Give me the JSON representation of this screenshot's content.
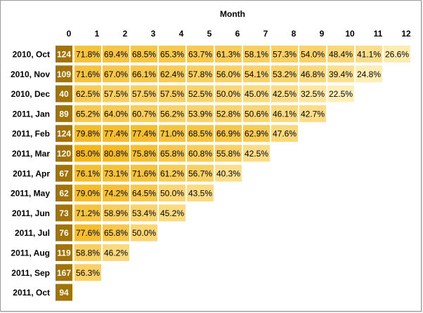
{
  "chart_data": {
    "type": "heatmap",
    "title": "Month",
    "columns": [
      "0",
      "1",
      "2",
      "3",
      "4",
      "5",
      "6",
      "7",
      "8",
      "9",
      "10",
      "11",
      "12"
    ],
    "rows": [
      {
        "label": "2010, Oct",
        "count": "124",
        "values": [
          "71.8%",
          "69.4%",
          "68.5%",
          "65.3%",
          "63.7%",
          "61.3%",
          "58.1%",
          "57.3%",
          "54.0%",
          "48.4%",
          "41.1%",
          "26.6%"
        ]
      },
      {
        "label": "2010, Nov",
        "count": "109",
        "values": [
          "71.6%",
          "67.0%",
          "66.1%",
          "62.4%",
          "57.8%",
          "56.0%",
          "54.1%",
          "53.2%",
          "46.8%",
          "39.4%",
          "24.8%"
        ]
      },
      {
        "label": "2010, Dec",
        "count": "40",
        "values": [
          "62.5%",
          "57.5%",
          "57.5%",
          "57.5%",
          "52.5%",
          "50.0%",
          "45.0%",
          "42.5%",
          "32.5%",
          "22.5%"
        ]
      },
      {
        "label": "2011, Jan",
        "count": "89",
        "values": [
          "65.2%",
          "64.0%",
          "60.7%",
          "56.2%",
          "53.9%",
          "52.8%",
          "50.6%",
          "46.1%",
          "42.7%"
        ]
      },
      {
        "label": "2011, Feb",
        "count": "124",
        "values": [
          "79.8%",
          "77.4%",
          "77.4%",
          "71.0%",
          "68.5%",
          "66.9%",
          "62.9%",
          "47.6%"
        ]
      },
      {
        "label": "2011, Mar",
        "count": "120",
        "values": [
          "85.0%",
          "80.8%",
          "75.8%",
          "65.8%",
          "60.8%",
          "55.8%",
          "42.5%"
        ]
      },
      {
        "label": "2011, Apr",
        "count": "67",
        "values": [
          "76.1%",
          "73.1%",
          "71.6%",
          "61.2%",
          "56.7%",
          "40.3%"
        ]
      },
      {
        "label": "2011, May",
        "count": "62",
        "values": [
          "79.0%",
          "74.2%",
          "64.5%",
          "50.0%",
          "43.5%"
        ]
      },
      {
        "label": "2011, Jun",
        "count": "73",
        "values": [
          "71.2%",
          "58.9%",
          "53.4%",
          "45.2%"
        ]
      },
      {
        "label": "2011, Jul",
        "count": "76",
        "values": [
          "77.6%",
          "65.8%",
          "50.0%"
        ]
      },
      {
        "label": "2011, Aug",
        "count": "119",
        "values": [
          "58.8%",
          "46.2%"
        ]
      },
      {
        "label": "2011, Sep",
        "count": "167",
        "values": [
          "56.3%"
        ]
      },
      {
        "label": "2011, Oct",
        "count": "94",
        "values": []
      }
    ],
    "colors": {
      "count_cell": "#a27309",
      "low": "#fff1c0",
      "high": "#f3b30f"
    }
  }
}
